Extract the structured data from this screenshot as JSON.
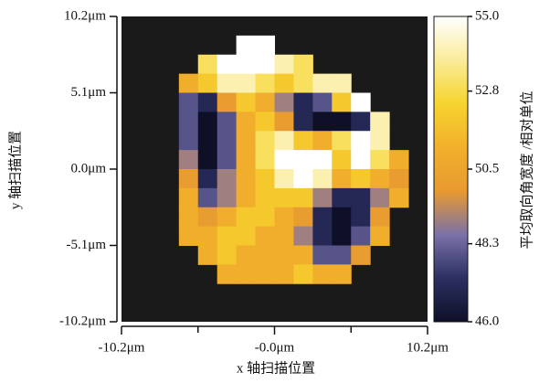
{
  "chart_data": {
    "type": "heatmap",
    "xlabel": "x 轴扫描位置",
    "ylabel": "y 轴扫描位置",
    "colorbar_label": "平均取向角宽度 /相对单位",
    "xlim": [
      -10.2,
      10.2
    ],
    "ylim": [
      -10.2,
      10.2
    ],
    "xticks": [
      {
        "value": -10.2,
        "label": "-10.2μm"
      },
      {
        "value": 0,
        "label": "-0.0μm"
      },
      {
        "value": 10.2,
        "label": "10.2μm"
      }
    ],
    "xminorticks": [
      -5.1,
      5.1
    ],
    "yticks": [
      {
        "value": 10.2,
        "label": "10.2μm"
      },
      {
        "value": 5.1,
        "label": "5.1μm"
      },
      {
        "value": 0,
        "label": "0.0μm"
      },
      {
        "value": -5.1,
        "label": "-5.1μm"
      },
      {
        "value": -10.2,
        "label": "-10.2μm"
      }
    ],
    "clim": [
      46,
      55
    ],
    "cticks": [
      {
        "value": 46,
        "label": "46.0"
      },
      48.3,
      50.5,
      52.8,
      {
        "value": 55,
        "label": "55.0"
      }
    ],
    "colormap": [
      "#0e1028",
      "#2c2f62",
      "#7a72a8",
      "#e89a30",
      "#f2b02c",
      "#f6d42e",
      "#faec9a",
      "#ffffff"
    ],
    "background": "#1a1a1a",
    "values": [
      [
        null,
        null,
        null,
        null,
        null,
        null,
        null,
        null,
        null,
        null,
        null,
        null,
        null,
        null,
        null,
        null
      ],
      [
        null,
        null,
        null,
        null,
        null,
        null,
        55,
        55,
        null,
        null,
        null,
        null,
        null,
        null,
        null,
        null
      ],
      [
        null,
        null,
        null,
        null,
        53,
        55,
        55,
        55,
        54,
        53,
        null,
        null,
        null,
        null,
        null,
        null
      ],
      [
        null,
        null,
        null,
        51,
        52,
        54,
        54,
        53,
        52,
        53,
        54,
        54,
        null,
        null,
        null,
        null
      ],
      [
        null,
        null,
        null,
        48,
        47,
        50,
        52,
        51,
        49,
        47,
        48,
        52,
        55,
        null,
        null,
        null
      ],
      [
        null,
        null,
        null,
        48,
        46,
        48,
        51,
        52,
        50,
        47,
        46,
        46,
        47,
        54,
        null,
        null
      ],
      [
        null,
        null,
        null,
        48,
        46,
        48,
        51,
        53,
        54,
        52,
        51,
        53,
        55,
        54,
        null,
        null
      ],
      [
        null,
        null,
        null,
        49,
        46,
        48,
        51,
        53,
        55,
        55,
        55,
        52,
        55,
        53,
        51,
        null
      ],
      [
        null,
        null,
        null,
        50,
        47,
        49,
        51,
        52,
        54,
        55,
        54,
        51,
        52,
        51,
        50,
        null
      ],
      [
        null,
        null,
        null,
        51,
        48,
        49,
        51,
        52,
        52,
        52,
        49,
        47,
        47,
        49,
        51,
        null
      ],
      [
        null,
        null,
        null,
        51,
        50,
        51,
        52,
        52,
        51,
        50,
        47,
        46,
        47,
        50,
        null,
        null
      ],
      [
        null,
        null,
        null,
        51,
        51,
        52,
        52,
        51,
        51,
        49,
        47,
        46,
        48,
        51,
        null,
        null
      ],
      [
        null,
        null,
        null,
        null,
        51,
        52,
        51,
        51,
        51,
        51,
        48,
        48,
        50,
        null,
        null,
        null
      ],
      [
        null,
        null,
        null,
        null,
        null,
        51,
        51,
        51,
        51,
        52,
        51,
        51,
        null,
        null,
        null,
        null
      ],
      [
        null,
        null,
        null,
        null,
        null,
        null,
        null,
        null,
        null,
        null,
        null,
        null,
        null,
        null,
        null,
        null
      ],
      [
        null,
        null,
        null,
        null,
        null,
        null,
        null,
        null,
        null,
        null,
        null,
        null,
        null,
        null,
        null,
        null
      ]
    ]
  }
}
